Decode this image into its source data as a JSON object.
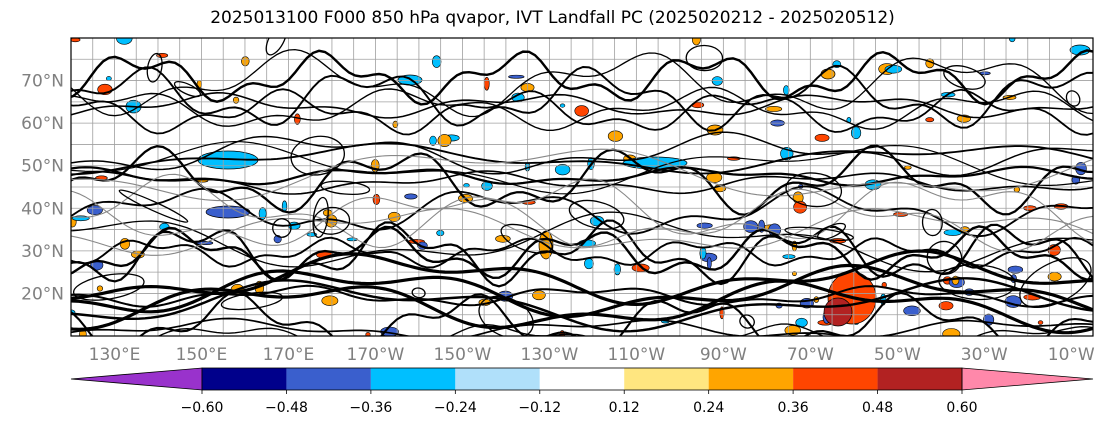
{
  "title": "2025013100 F000 850 hPa qvapor, IVT Landfall PC (2025020212 - 2025020512)",
  "map": {
    "lon_range": [
      120,
      355
    ],
    "lat_range": [
      10,
      80
    ],
    "lat_ticks": [
      {
        "lat": 70,
        "label": "70°N"
      },
      {
        "lat": 60,
        "label": "60°N"
      },
      {
        "lat": 50,
        "label": "50°N"
      },
      {
        "lat": 40,
        "label": "40°N"
      },
      {
        "lat": 30,
        "label": "30°N"
      },
      {
        "lat": 20,
        "label": "20°N"
      }
    ],
    "lon_ticks": [
      {
        "lon": 130,
        "label": "130°E"
      },
      {
        "lon": 150,
        "label": "150°E"
      },
      {
        "lon": 170,
        "label": "170°E"
      },
      {
        "lon": 190,
        "label": "170°W"
      },
      {
        "lon": 210,
        "label": "150°W"
      },
      {
        "lon": 230,
        "label": "130°W"
      },
      {
        "lon": 250,
        "label": "110°W"
      },
      {
        "lon": 270,
        "label": "90°W"
      },
      {
        "lon": 290,
        "label": "70°W"
      },
      {
        "lon": 310,
        "label": "50°W"
      },
      {
        "lon": 330,
        "label": "30°W"
      },
      {
        "lon": 350,
        "label": "10°W"
      }
    ],
    "grid": true,
    "grid_color": "#a0a0a0",
    "contour_color": "#000000"
  },
  "colorbar": {
    "min_color": "#9932cc",
    "max_color": "#ff88aa",
    "colors": [
      "#00008b",
      "#3a5fcd",
      "#00bfff",
      "#b0e0fa",
      "#ffffff",
      "#ffe680",
      "#ffa500",
      "#ff4500",
      "#b22222"
    ],
    "tick_labels": [
      "−0.60",
      "−0.48",
      "−0.36",
      "−0.24",
      "−0.12",
      "0.12",
      "0.24",
      "0.36",
      "0.48",
      "0.60"
    ]
  }
}
